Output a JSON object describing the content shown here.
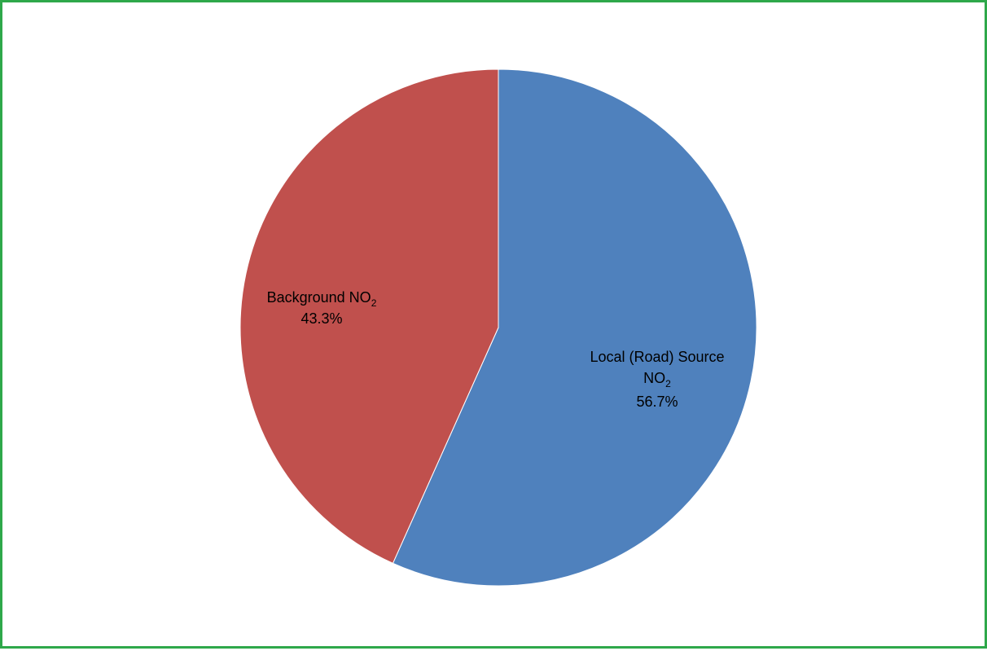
{
  "chart_data": {
    "type": "pie",
    "title": "",
    "slices": [
      {
        "label": "Local (Road) Source NO2",
        "label_line1": "Local (Road) Source",
        "label_line2_main": "NO",
        "label_line2_sub": "2",
        "percent_text": "56.7%",
        "value": 56.7,
        "color": "#4f81bd"
      },
      {
        "label": "Background NO2",
        "label_line1_main": "Background NO",
        "label_line1_sub": "2",
        "percent_text": "43.3%",
        "value": 43.3,
        "color": "#c0504d"
      }
    ],
    "start_angle_deg": 0,
    "direction": "clockwise",
    "legend": "none"
  },
  "colors": {
    "border": "#2ea84a",
    "slice_edge": "#ffffff"
  }
}
